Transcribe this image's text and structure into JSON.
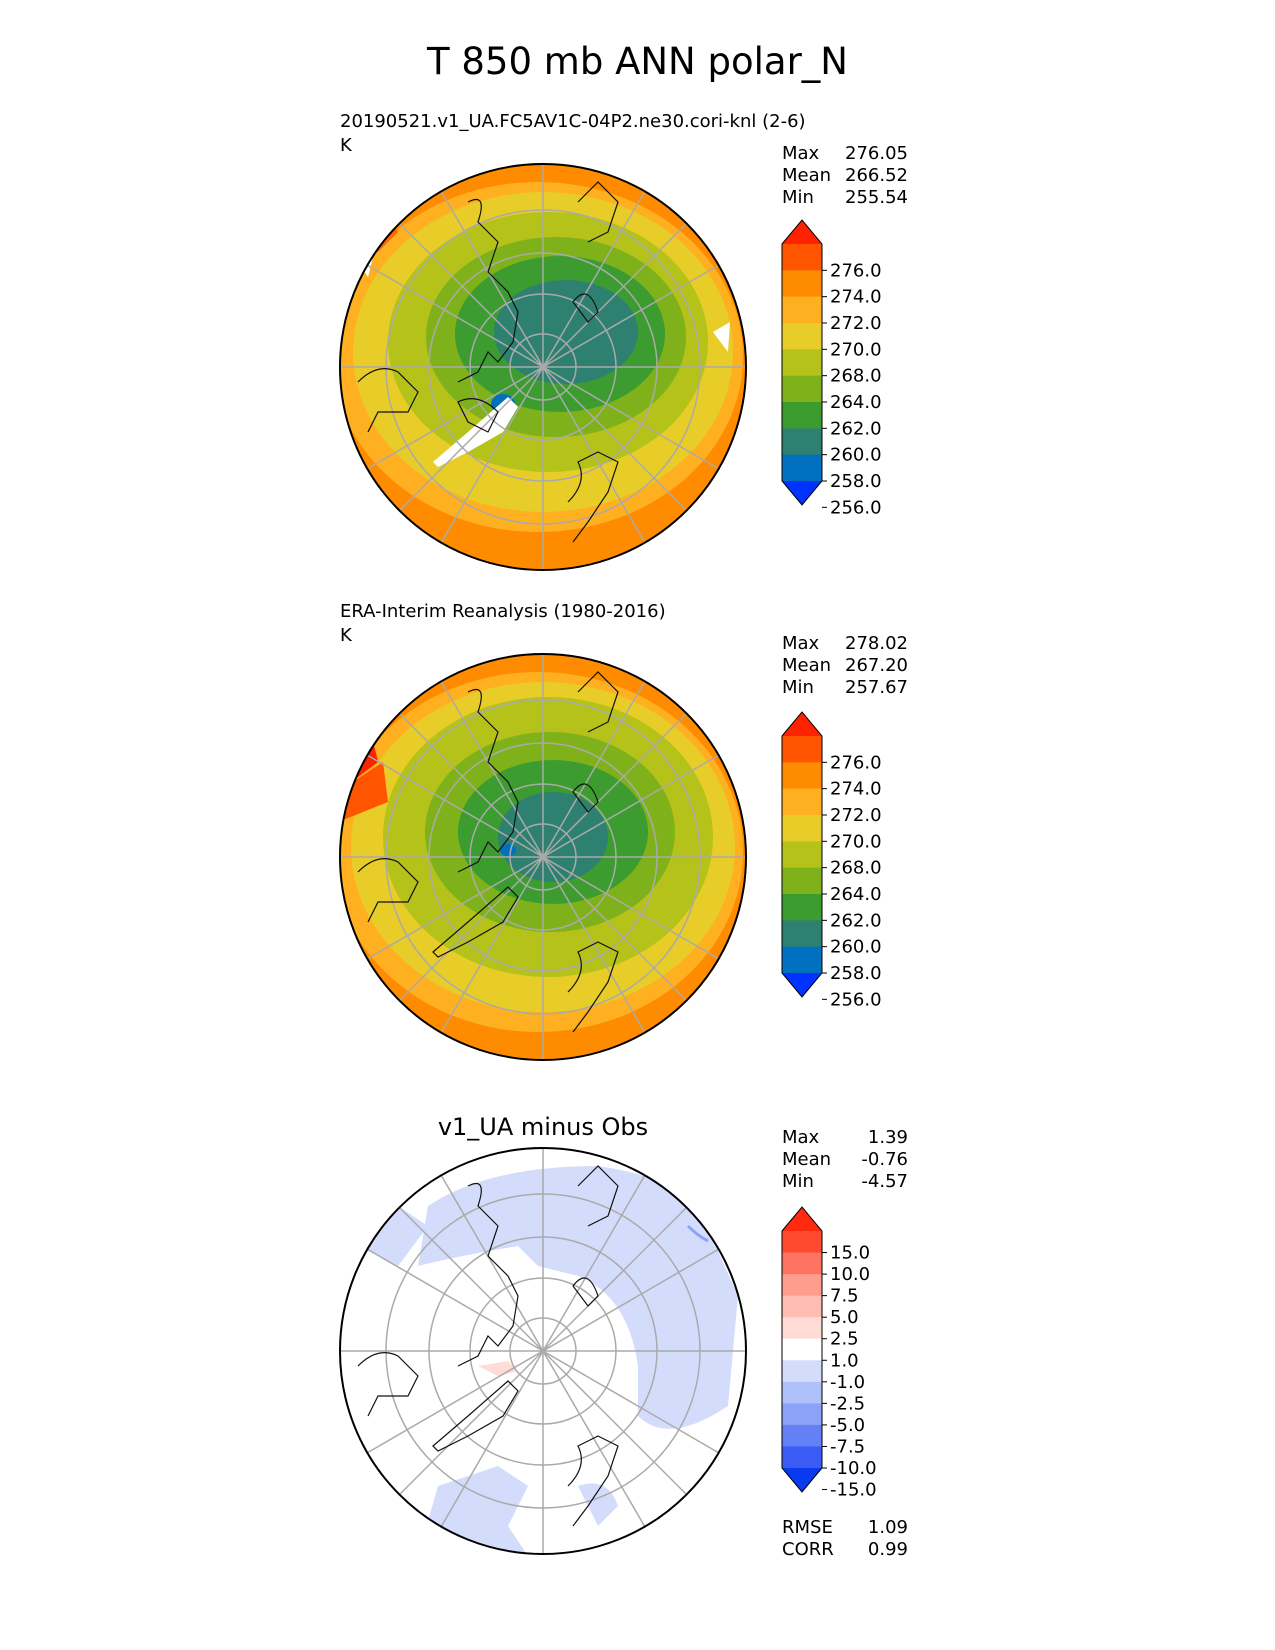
{
  "page_title": "T 850 mb ANN polar_N",
  "panels": [
    {
      "title": "20190521.v1_UA.FC5AV1C-04P2.ne30.cori-knl (2-6)",
      "units": "K",
      "stats": [
        {
          "label": "Max",
          "value": "276.05"
        },
        {
          "label": "Mean",
          "value": "266.52"
        },
        {
          "label": "Min",
          "value": "255.54"
        }
      ],
      "colorbar": {
        "ticks": [
          "276.0",
          "274.0",
          "272.0",
          "270.0",
          "268.0",
          "264.0",
          "262.0",
          "260.0",
          "258.0",
          "256.0"
        ],
        "colors": [
          "#ff2200",
          "#ff5500",
          "#ff8c00",
          "#ffb020",
          "#e8cc28",
          "#b5c21a",
          "#7fb21a",
          "#3c9c30",
          "#2e8070",
          "#0070c0",
          "#0033ff"
        ]
      }
    },
    {
      "title": "ERA-Interim Reanalysis (1980-2016)",
      "units": "K",
      "stats": [
        {
          "label": "Max",
          "value": "278.02"
        },
        {
          "label": "Mean",
          "value": "267.20"
        },
        {
          "label": "Min",
          "value": "257.67"
        }
      ],
      "colorbar": {
        "ticks": [
          "276.0",
          "274.0",
          "272.0",
          "270.0",
          "268.0",
          "264.0",
          "262.0",
          "260.0",
          "258.0",
          "256.0"
        ],
        "colors": [
          "#ff2200",
          "#ff5500",
          "#ff8c00",
          "#ffb020",
          "#e8cc28",
          "#b5c21a",
          "#7fb21a",
          "#3c9c30",
          "#2e8070",
          "#0070c0",
          "#0033ff"
        ]
      }
    },
    {
      "title": "v1_UA minus Obs",
      "stats": [
        {
          "label": "Max",
          "value": "1.39"
        },
        {
          "label": "Mean",
          "value": "-0.76"
        },
        {
          "label": "Min",
          "value": "-4.57"
        }
      ],
      "colorbar": {
        "ticks": [
          "15.0",
          "10.0",
          "7.5",
          "5.0",
          "2.5",
          "1.0",
          "-1.0",
          "-2.5",
          "-5.0",
          "-7.5",
          "-10.0",
          "-15.0"
        ],
        "colors": [
          "#ff2a10",
          "#ff4a30",
          "#ff7460",
          "#ff9c8c",
          "#ffbcb0",
          "#ffdcd6",
          "#ffffff",
          "#d4dcfc",
          "#b0c0fa",
          "#8ca2f8",
          "#6480f6",
          "#3a5cf4",
          "#0a3af0"
        ]
      },
      "footer": [
        {
          "label": "RMSE",
          "value": "1.09"
        },
        {
          "label": "CORR",
          "value": "0.99"
        }
      ]
    }
  ],
  "chart_data": [
    {
      "type": "heatmap",
      "projection": "north polar stereographic",
      "title": "20190521.v1_UA.FC5AV1C-04P2.ne30.cori-knl (2-6)",
      "units": "K",
      "max": 276.05,
      "mean": 266.52,
      "min": 255.54,
      "levels": [
        256,
        258,
        260,
        262,
        264,
        268,
        270,
        272,
        274,
        276
      ]
    },
    {
      "type": "heatmap",
      "projection": "north polar stereographic",
      "title": "ERA-Interim Reanalysis (1980-2016)",
      "units": "K",
      "max": 278.02,
      "mean": 267.2,
      "min": 257.67,
      "levels": [
        256,
        258,
        260,
        262,
        264,
        268,
        270,
        272,
        274,
        276
      ]
    },
    {
      "type": "heatmap",
      "projection": "north polar stereographic",
      "title": "v1_UA minus Obs",
      "max": 1.39,
      "mean": -0.76,
      "min": -4.57,
      "levels": [
        -15,
        -10,
        -7.5,
        -5,
        -2.5,
        -1,
        1,
        2.5,
        5,
        7.5,
        10,
        15
      ],
      "rmse": 1.09,
      "corr": 0.99
    }
  ]
}
